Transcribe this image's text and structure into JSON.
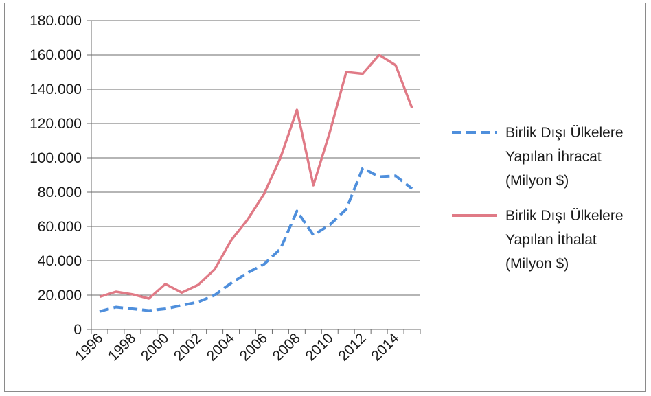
{
  "chart_data": {
    "type": "line",
    "title": "",
    "xlabel": "",
    "ylabel": "",
    "x": [
      1996,
      1997,
      1998,
      1999,
      2000,
      2001,
      2002,
      2003,
      2004,
      2005,
      2006,
      2007,
      2008,
      2009,
      2010,
      2011,
      2012,
      2013,
      2014,
      2015
    ],
    "x_tick_labels": [
      "1996",
      "1998",
      "2000",
      "2002",
      "2004",
      "2006",
      "2008",
      "2010",
      "2012",
      "2014"
    ],
    "ylim": [
      0,
      180000
    ],
    "y_tick_labels": [
      "0",
      "20.000",
      "40.000",
      "60.000",
      "80.000",
      "100.000",
      "120.000",
      "140.000",
      "160.000",
      "180.000"
    ],
    "y_ticks": [
      0,
      20000,
      40000,
      60000,
      80000,
      100000,
      120000,
      140000,
      160000,
      180000
    ],
    "grid": true,
    "legend_position": "right",
    "series": [
      {
        "name": "Birlik Dışı Ülkelere Yapılan İhracat (Milyon $)",
        "name_lines": [
          "Birlik Dışı Ülkelere",
          "Yapılan İhracat",
          "(Milyon  $)"
        ],
        "color": "#4f8fdc",
        "style": "dashed",
        "values": [
          10500,
          13000,
          12000,
          11000,
          12000,
          14000,
          16000,
          20000,
          27000,
          33000,
          38000,
          47000,
          69000,
          55000,
          61000,
          70000,
          94000,
          89000,
          89500,
          82000
        ]
      },
      {
        "name": "Birlik Dışı Ülkelere Yapılan İthalat (Milyon $)",
        "name_lines": [
          "Birlik Dışı Ülkelere",
          "Yapılan İthalat",
          "(Milyon  $)"
        ],
        "color": "#e07a86",
        "style": "solid",
        "values": [
          19000,
          22000,
          20500,
          18000,
          26500,
          21500,
          26000,
          35000,
          52000,
          64000,
          79000,
          100000,
          128000,
          84000,
          115000,
          150000,
          149000,
          160000,
          154000,
          129000
        ]
      }
    ]
  }
}
